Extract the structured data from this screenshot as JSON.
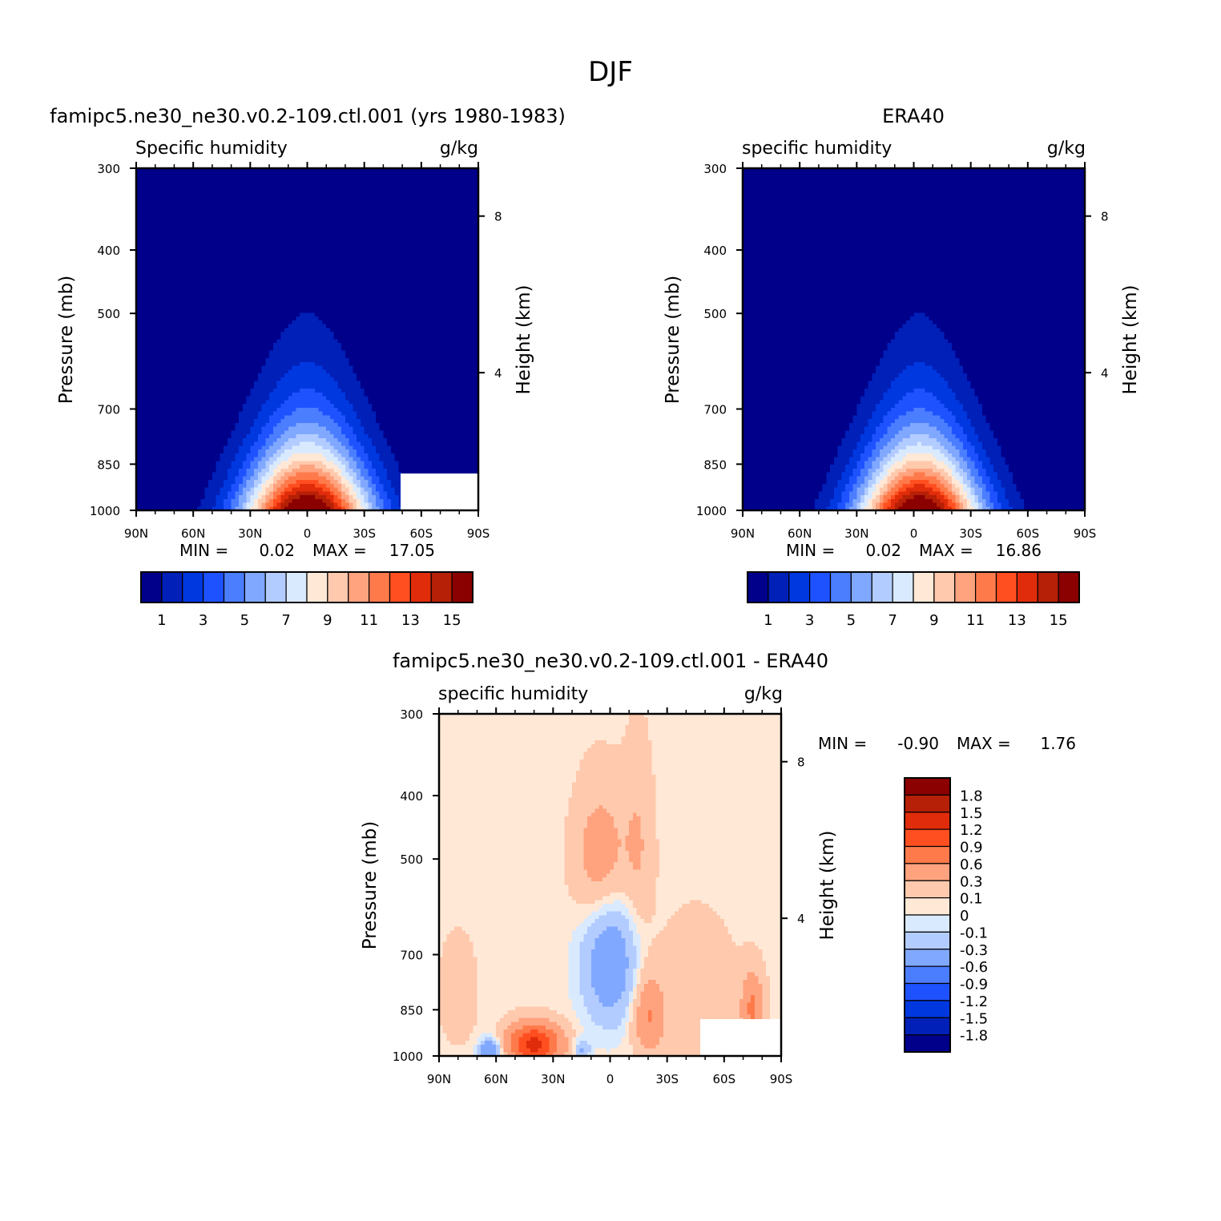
{
  "figure": {
    "title": "DJF"
  },
  "colors": {
    "levels": [
      "#00008b",
      "#0020b8",
      "#0038e0",
      "#1f52ff",
      "#4b7dff",
      "#80a8ff",
      "#b3ccff",
      "#d9eaff",
      "#ffe8d6",
      "#ffc9ad",
      "#ffa27e",
      "#ff7a4b",
      "#ff4f20",
      "#e02c0a",
      "#b52006",
      "#8b0000"
    ]
  },
  "panels": [
    {
      "id": "model",
      "title": "famipc5.ne30_ne30.v0.2-109.ctl.001 (yrs 1980-1983)",
      "left_label": "Specific humidity",
      "right_label": "g/kg",
      "ylabel": "Pressure (mb)",
      "y2label": "Height (km)",
      "min_label": "MIN =",
      "min_value": "0.02",
      "max_label": "MAX =",
      "max_value": "17.05"
    },
    {
      "id": "obs",
      "title": "ERA40",
      "left_label": "specific humidity",
      "right_label": "g/kg",
      "ylabel": "Pressure (mb)",
      "y2label": "Height (km)",
      "min_label": "MIN =",
      "min_value": "0.02",
      "max_label": "MAX =",
      "max_value": "16.86"
    },
    {
      "id": "diff",
      "title": "famipc5.ne30_ne30.v0.2-109.ctl.001 - ERA40",
      "left_label": "specific humidity",
      "right_label": "g/kg",
      "ylabel": "Pressure (mb)",
      "y2label": "Height (km)",
      "min_label": "MIN =",
      "min_value": "-0.90",
      "max_label": "MAX =",
      "max_value": "1.76"
    }
  ],
  "chart_data": [
    {
      "type": "heatmap",
      "panel": "model",
      "x_tick_labels": [
        "90N",
        "60N",
        "30N",
        "0",
        "30S",
        "60S",
        "90S"
      ],
      "x_ticks": [
        90,
        60,
        30,
        0,
        -30,
        -60,
        -90
      ],
      "y_tick_labels": [
        "300",
        "400",
        "500",
        "700",
        "850",
        "1000"
      ],
      "y_ticks": [
        300,
        400,
        500,
        700,
        850,
        1000
      ],
      "y2_tick_labels": [
        "8",
        "4"
      ],
      "xlim": [
        90,
        -90
      ],
      "ylim": [
        1000,
        300
      ],
      "profile": {
        "center_lat": 0,
        "peak": 17.05,
        "base": 0.02,
        "width_lat": 34
      },
      "colorbar": {
        "labels": [
          "1",
          "3",
          "5",
          "7",
          "9",
          "11",
          "13",
          "15"
        ],
        "levels": [
          0,
          1,
          2,
          3,
          4,
          5,
          6,
          7,
          8,
          9,
          10,
          11,
          12,
          13,
          14,
          15
        ]
      }
    },
    {
      "type": "heatmap",
      "panel": "obs",
      "x_tick_labels": [
        "90N",
        "60N",
        "30N",
        "0",
        "30S",
        "60S",
        "90S"
      ],
      "x_ticks": [
        90,
        60,
        30,
        0,
        -30,
        -60,
        -90
      ],
      "y_tick_labels": [
        "300",
        "400",
        "500",
        "700",
        "850",
        "1000"
      ],
      "y_ticks": [
        300,
        400,
        500,
        700,
        850,
        1000
      ],
      "y2_tick_labels": [
        "8",
        "4"
      ],
      "xlim": [
        90,
        -90
      ],
      "ylim": [
        1000,
        300
      ],
      "profile": {
        "center_lat": -3,
        "peak": 16.86,
        "base": 0.02,
        "width_lat": 33
      },
      "colorbar": {
        "labels": [
          "1",
          "3",
          "5",
          "7",
          "9",
          "11",
          "13",
          "15"
        ],
        "levels": [
          0,
          1,
          2,
          3,
          4,
          5,
          6,
          7,
          8,
          9,
          10,
          11,
          12,
          13,
          14,
          15
        ]
      }
    },
    {
      "type": "heatmap",
      "panel": "diff",
      "x_tick_labels": [
        "90N",
        "60N",
        "30N",
        "0",
        "30S",
        "60S",
        "90S"
      ],
      "x_ticks": [
        90,
        60,
        30,
        0,
        -30,
        -60,
        -90
      ],
      "y_tick_labels": [
        "300",
        "400",
        "500",
        "700",
        "850",
        "1000"
      ],
      "y_ticks": [
        300,
        400,
        500,
        700,
        850,
        1000
      ],
      "y2_tick_labels": [
        "8",
        "4"
      ],
      "xlim": [
        90,
        -90
      ],
      "ylim": [
        1000,
        300
      ],
      "anomalies": [
        {
          "lat": 5,
          "p": 500,
          "amp": 0.45,
          "wlat": 14,
          "wp": 120
        },
        {
          "lat": -15,
          "p": 480,
          "amp": 0.25,
          "wlat": 8,
          "wp": 160
        },
        {
          "lat": 0,
          "p": 720,
          "amp": -0.6,
          "wlat": 14,
          "wp": 160
        },
        {
          "lat": 40,
          "p": 960,
          "amp": 1.3,
          "wlat": 14,
          "wp": 70
        },
        {
          "lat": 63,
          "p": 980,
          "amp": -0.7,
          "wlat": 6,
          "wp": 40
        },
        {
          "lat": -20,
          "p": 870,
          "amp": 0.55,
          "wlat": 8,
          "wp": 120
        },
        {
          "lat": -75,
          "p": 850,
          "amp": 0.6,
          "wlat": 6,
          "wp": 110
        },
        {
          "lat": -45,
          "p": 800,
          "amp": 0.2,
          "wlat": 22,
          "wp": 200
        },
        {
          "lat": 80,
          "p": 800,
          "amp": 0.2,
          "wlat": 10,
          "wp": 150
        },
        {
          "lat": 15,
          "p": 980,
          "amp": -0.4,
          "wlat": 4,
          "wp": 40
        }
      ],
      "colorbar": {
        "labels": [
          "1.8",
          "1.5",
          "1.2",
          "0.9",
          "0.6",
          "0.3",
          "0.1",
          "0",
          "-0.1",
          "-0.3",
          "-0.6",
          "-0.9",
          "-1.2",
          "-1.5",
          "-1.8"
        ],
        "levels": [
          -1.8,
          -1.5,
          -1.2,
          -0.9,
          -0.6,
          -0.3,
          -0.1,
          0,
          0.1,
          0.3,
          0.6,
          0.9,
          1.2,
          1.5,
          1.8
        ]
      }
    }
  ]
}
